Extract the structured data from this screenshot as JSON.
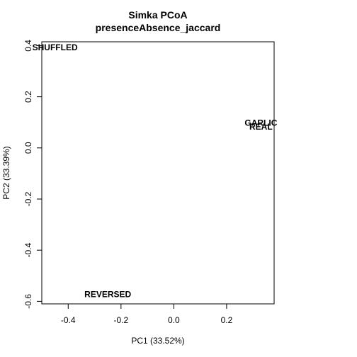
{
  "chart_data": {
    "type": "scatter",
    "title": "Simka PCoA",
    "subtitle": "presenceAbsence_jaccard",
    "xlabel": "PC1 (33.52%)",
    "ylabel": "PC2 (33.39%)",
    "xlim": [
      -0.5,
      0.38
    ],
    "ylim": [
      -0.61,
      0.415
    ],
    "xticks": [
      -0.4,
      -0.2,
      0.0,
      0.2
    ],
    "yticks": [
      -0.6,
      -0.4,
      -0.2,
      0.0,
      0.2,
      0.4
    ],
    "xtick_labels": [
      "-0.4",
      "-0.2",
      "0.0",
      "0.2"
    ],
    "ytick_labels": [
      "-0.6",
      "-0.4",
      "-0.2",
      "0.0",
      "0.2",
      "0.4"
    ],
    "grid": false,
    "points": [
      {
        "label": "SHUFFLED",
        "x": -0.45,
        "y": 0.39
      },
      {
        "label": "GARLIC",
        "x": 0.33,
        "y": 0.095
      },
      {
        "label": "REAL",
        "x": 0.33,
        "y": 0.08
      },
      {
        "label": "REVERSED",
        "x": -0.25,
        "y": -0.575
      }
    ]
  }
}
